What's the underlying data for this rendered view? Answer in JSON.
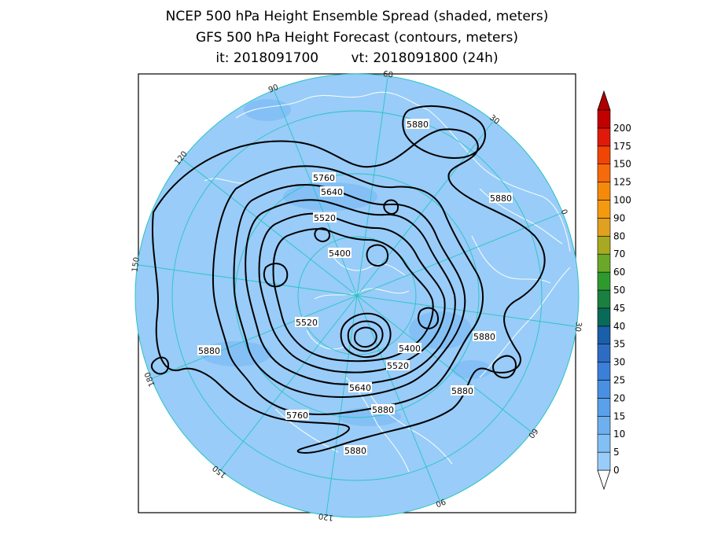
{
  "title": {
    "line1": "NCEP 500 hPa Height Ensemble Spread (shaded, meters)",
    "line2": "GFS 500 hPa Height Forecast (contours, meters)",
    "init": "it: 2018091700",
    "valid": "vt: 2018091800 (24h)"
  },
  "colorbar": {
    "levels": [
      "0",
      "5",
      "10",
      "15",
      "20",
      "25",
      "30",
      "35",
      "40",
      "45",
      "50",
      "60",
      "70",
      "80",
      "90",
      "100",
      "125",
      "150",
      "175",
      "200"
    ],
    "colors": [
      "#99ccf8",
      "#82bff5",
      "#6eb0ef",
      "#5aa0ea",
      "#4a90e2",
      "#3b7fd9",
      "#2e6cc4",
      "#1a5faa",
      "#0a6a5a",
      "#1a8040",
      "#2e9a2e",
      "#6aa82a",
      "#a8a822",
      "#e0a020",
      "#f59a10",
      "#f58a0a",
      "#f56a0a",
      "#f04505",
      "#e01a0a",
      "#c20000"
    ],
    "over_color": "#b00000",
    "under_color": "#ffffff"
  },
  "map": {
    "projection": "north polar stereographic",
    "background_spread_color": "#99ccf8",
    "longitude_labels": [
      "60",
      "30",
      "0",
      "30",
      "60",
      "90",
      "120",
      "150",
      "180",
      "150",
      "120",
      "90"
    ],
    "contour_labels": [
      {
        "text": "5880",
        "id": "c1"
      },
      {
        "text": "5760",
        "id": "c2"
      },
      {
        "text": "5640",
        "id": "c3"
      },
      {
        "text": "5520",
        "id": "c4"
      },
      {
        "text": "5400",
        "id": "c5"
      },
      {
        "text": "5880",
        "id": "c6"
      },
      {
        "text": "5520",
        "id": "c7"
      },
      {
        "text": "5880",
        "id": "c8"
      },
      {
        "text": "5880",
        "id": "c9"
      },
      {
        "text": "5400",
        "id": "c10"
      },
      {
        "text": "5520",
        "id": "c11"
      },
      {
        "text": "5640",
        "id": "c12"
      },
      {
        "text": "5880",
        "id": "c13"
      },
      {
        "text": "5880",
        "id": "c14"
      },
      {
        "text": "5760",
        "id": "c15"
      },
      {
        "text": "5880",
        "id": "c16"
      }
    ]
  }
}
